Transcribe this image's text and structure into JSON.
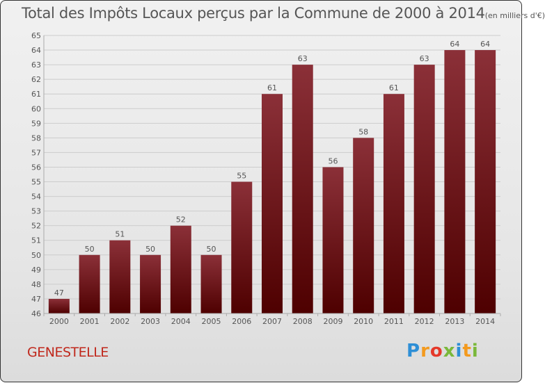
{
  "title": "Total des Impôts Locaux perçus par la Commune de 2000 à 2014",
  "title_unit": "(en milliers d'€)",
  "commune": "GENESTELLE",
  "logo": [
    "P",
    "r",
    "o",
    "x",
    "i",
    "t",
    "i"
  ],
  "colors": {
    "bar_top": "#8b3038",
    "bar_bottom": "#4e0000",
    "grid": "#cccccc",
    "text": "#555555",
    "commune": "#c0281c"
  },
  "chart_data": {
    "type": "bar",
    "title": "Total des Impôts Locaux perçus par la Commune de 2000 à 2014 (en milliers d'€)",
    "xlabel": "",
    "ylabel": "",
    "categories": [
      "2000",
      "2001",
      "2002",
      "2003",
      "2004",
      "2005",
      "2006",
      "2007",
      "2008",
      "2009",
      "2010",
      "2011",
      "2012",
      "2013",
      "2014"
    ],
    "values": [
      47,
      50,
      51,
      50,
      52,
      50,
      55,
      61,
      63,
      56,
      58,
      61,
      63,
      64,
      64
    ],
    "ylim": [
      46,
      65
    ],
    "yticks": [
      46,
      47,
      48,
      49,
      50,
      51,
      52,
      53,
      54,
      55,
      56,
      57,
      58,
      59,
      60,
      61,
      62,
      63,
      64,
      65
    ],
    "grid": true
  }
}
